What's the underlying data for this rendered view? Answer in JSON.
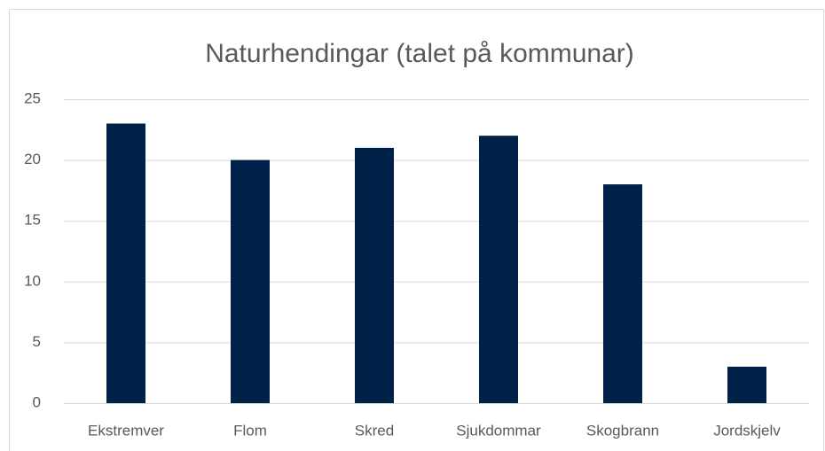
{
  "chart_data": {
    "type": "bar",
    "title": "Naturhendingar (talet på kommunar)",
    "categories": [
      "Ekstremver",
      "Flom",
      "Skred",
      "Sjukdommar",
      "Skogbrann",
      "Jordskjelv"
    ],
    "values": [
      23,
      20,
      21,
      22,
      18,
      3
    ],
    "color": "#002147",
    "ylim": [
      0,
      25
    ],
    "yticks": [
      0,
      5,
      10,
      15,
      20,
      25
    ],
    "grid": true
  }
}
